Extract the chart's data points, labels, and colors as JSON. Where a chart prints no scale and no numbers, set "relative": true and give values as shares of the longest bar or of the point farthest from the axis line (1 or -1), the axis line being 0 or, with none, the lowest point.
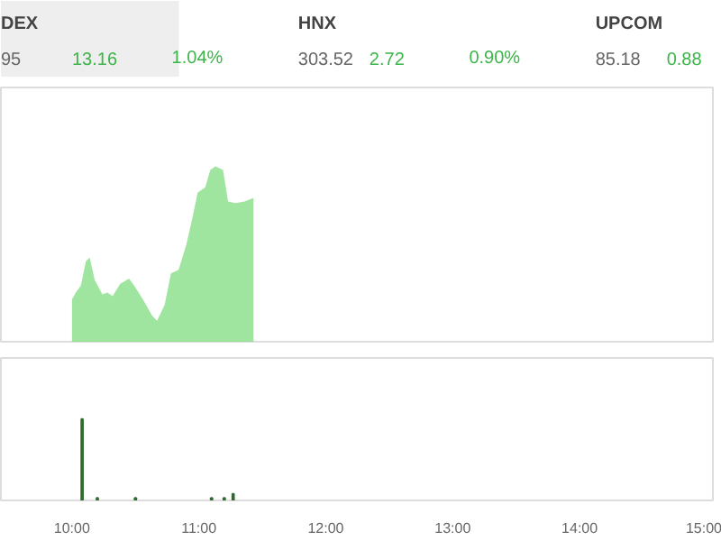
{
  "chart_data": [
    {
      "type": "other",
      "annotations": [
        "DEX",
        "95",
        "13.16",
        "1.04%",
        "HNX",
        "303.52",
        "2.72",
        "0.90%",
        "UPCOM",
        "85.18",
        "0.88"
      ]
    },
    {
      "type": "area",
      "relative": true,
      "tick_labels": false,
      "xlim": [
        9.44,
        15.05
      ],
      "x": [
        10.0,
        10.03,
        10.07,
        10.11,
        10.14,
        10.18,
        10.24,
        10.28,
        10.32,
        10.38,
        10.45,
        10.49,
        10.56,
        10.63,
        10.67,
        10.73,
        10.78,
        10.84,
        10.9,
        10.95,
        10.99,
        11.05,
        11.09,
        11.13,
        11.19,
        11.23,
        11.29,
        11.36,
        11.43
      ],
      "series": [
        {
          "color": "#7fdc7f",
          "values": [
            0.24,
            0.28,
            0.32,
            0.46,
            0.48,
            0.35,
            0.27,
            0.28,
            0.26,
            0.33,
            0.36,
            0.32,
            0.24,
            0.15,
            0.12,
            0.21,
            0.39,
            0.41,
            0.55,
            0.71,
            0.85,
            0.88,
            0.98,
            1.0,
            0.98,
            0.8,
            0.79,
            0.8,
            0.82
          ]
        }
      ]
    },
    {
      "type": "bar",
      "relative": true,
      "tick_labels": "x",
      "xlim": [
        9.44,
        15.05
      ],
      "xticks": [
        {
          "value": 10,
          "label": "10:00"
        },
        {
          "value": 11,
          "label": "11:00"
        },
        {
          "value": 12,
          "label": "12:00"
        },
        {
          "value": 13,
          "label": "13:00"
        },
        {
          "value": 14,
          "label": "14:00"
        },
        {
          "value": 15,
          "label": "15:00"
        }
      ],
      "x": [
        10.08,
        10.2,
        10.5,
        11.1,
        11.2,
        11.27
      ],
      "series": [
        {
          "color": "#2e6b2e",
          "values": [
            1.0,
            0.03,
            0.03,
            0.03,
            0.03,
            0.08
          ]
        }
      ]
    }
  ]
}
